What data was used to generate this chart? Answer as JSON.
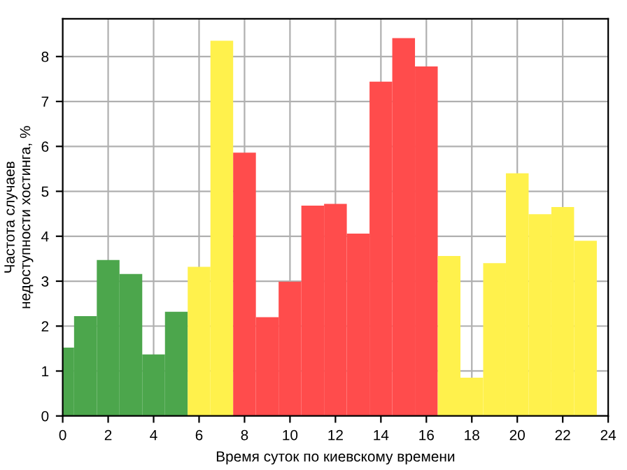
{
  "chart_data": {
    "type": "bar",
    "xlabel": "Время суток по киевскому времени",
    "ylabel": "Частота случаев\nнедоступности хостинга, %",
    "x": [
      0,
      1,
      2,
      3,
      4,
      5,
      6,
      7,
      8,
      9,
      10,
      11,
      12,
      13,
      14,
      15,
      16,
      17,
      18,
      19,
      20,
      21,
      22,
      23
    ],
    "values": [
      1.52,
      2.22,
      3.47,
      3.16,
      1.37,
      2.32,
      3.32,
      8.35,
      5.86,
      2.2,
      2.99,
      4.68,
      4.72,
      4.06,
      7.44,
      8.41,
      7.78,
      3.56,
      0.85,
      3.4,
      5.4,
      4.49,
      4.65,
      3.9
    ],
    "colors": [
      "#4ca64c",
      "#4ca64c",
      "#4ca64c",
      "#4ca64c",
      "#4ca64c",
      "#4ca64c",
      "#fff14c",
      "#fff14c",
      "#ff4c4c",
      "#ff4c4c",
      "#ff4c4c",
      "#ff4c4c",
      "#ff4c4c",
      "#ff4c4c",
      "#ff4c4c",
      "#ff4c4c",
      "#ff4c4c",
      "#fff14c",
      "#fff14c",
      "#fff14c",
      "#fff14c",
      "#fff14c",
      "#fff14c",
      "#fff14c"
    ],
    "xlim": [
      0,
      24
    ],
    "xticks": [
      0,
      2,
      4,
      6,
      8,
      10,
      12,
      14,
      16,
      18,
      20,
      22,
      24
    ],
    "ylim": [
      0,
      8.84
    ],
    "yticks": [
      0,
      1,
      2,
      3,
      4,
      5,
      6,
      7,
      8
    ],
    "grid": true
  }
}
